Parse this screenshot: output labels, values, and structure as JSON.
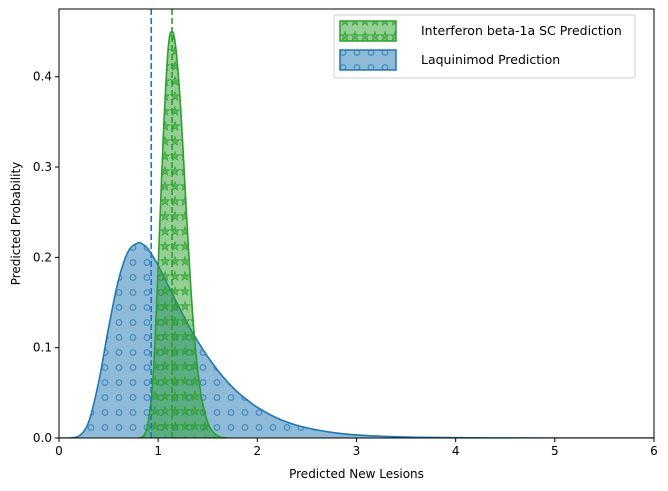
{
  "chart_data": {
    "type": "area",
    "title": "",
    "xlabel": "Predicted New Lesions",
    "ylabel": "Predicted Probability",
    "xlim": [
      0,
      6
    ],
    "ylim": [
      0,
      0.475
    ],
    "xticks": [
      0,
      1,
      2,
      3,
      4,
      5,
      6
    ],
    "yticks": [
      0.0,
      0.1,
      0.2,
      0.3,
      0.4
    ],
    "ytick_labels": [
      "0.0",
      "0.1",
      "0.2",
      "0.3",
      "0.4"
    ],
    "legend_position": "top-right",
    "series": [
      {
        "name": "Interferon beta-1a SC Prediction",
        "color": "#2ca02c",
        "pattern": "stars",
        "mean_line_x": 1.14,
        "x": [
          0.8,
          0.85,
          0.9,
          0.95,
          1.0,
          1.05,
          1.1,
          1.14,
          1.18,
          1.23,
          1.28,
          1.33,
          1.38,
          1.43,
          1.48,
          1.53,
          1.58,
          1.63,
          1.7
        ],
        "values": [
          0.0,
          0.002,
          0.018,
          0.07,
          0.19,
          0.33,
          0.43,
          0.45,
          0.43,
          0.36,
          0.26,
          0.165,
          0.095,
          0.05,
          0.024,
          0.01,
          0.004,
          0.001,
          0.0
        ]
      },
      {
        "name": "Laquinimod Prediction",
        "color": "#1f77b4",
        "pattern": "circles",
        "mean_line_x": 0.93,
        "x": [
          0.0,
          0.1,
          0.2,
          0.3,
          0.4,
          0.5,
          0.6,
          0.7,
          0.8,
          0.85,
          0.9,
          1.0,
          1.1,
          1.2,
          1.3,
          1.4,
          1.5,
          1.6,
          1.7,
          1.8,
          1.9,
          2.0,
          2.2,
          2.4,
          2.6,
          2.8,
          3.0,
          3.3,
          3.6,
          4.0,
          4.5,
          5.0,
          5.5,
          6.0
        ],
        "values": [
          0.0,
          0.0,
          0.002,
          0.018,
          0.062,
          0.122,
          0.175,
          0.207,
          0.216,
          0.214,
          0.209,
          0.191,
          0.169,
          0.147,
          0.126,
          0.107,
          0.09,
          0.075,
          0.062,
          0.051,
          0.042,
          0.034,
          0.022,
          0.014,
          0.009,
          0.0055,
          0.0034,
          0.0017,
          0.0008,
          0.0003,
          0.0001,
          0.0,
          0.0,
          0.0
        ]
      }
    ]
  }
}
